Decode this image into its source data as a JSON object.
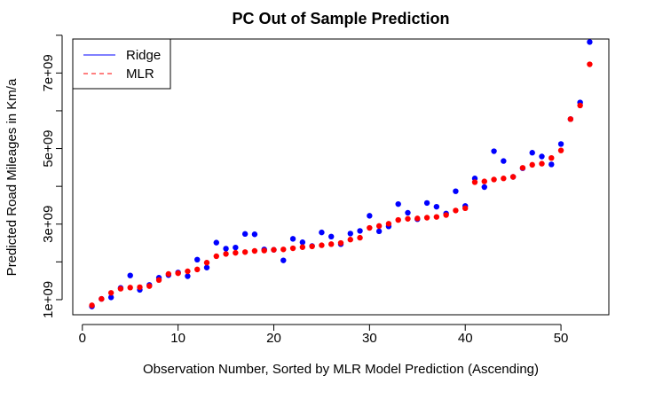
{
  "chart_data": {
    "type": "scatter",
    "title": "PC Out of Sample Prediction",
    "xlabel": "Observation Number, Sorted by MLR Model Prediction (Ascending)",
    "ylabel": "Predicted Road Mileages in Km/a",
    "xlim": [
      -1,
      55
    ],
    "ylim": [
      600000000,
      7900000000
    ],
    "x_ticks": [
      0,
      10,
      20,
      30,
      40,
      50
    ],
    "x_tick_labels": [
      "0",
      "10",
      "20",
      "30",
      "40",
      "50"
    ],
    "y_ticks": [
      1000000000,
      2000000000,
      3000000000,
      4000000000,
      5000000000,
      6000000000,
      7000000000,
      8000000000
    ],
    "y_tick_labels": [
      "1e+09",
      "",
      "3e+09",
      "",
      "5e+09",
      "",
      "7e+09",
      ""
    ],
    "legend": {
      "position": "top-left",
      "entries": [
        {
          "label": "Ridge",
          "color": "#0000ff",
          "line": "solid"
        },
        {
          "label": "MLR",
          "color": "#ff0000",
          "line": "dashed"
        }
      ]
    },
    "series": [
      {
        "name": "Ridge",
        "color": "#0000ff",
        "x": [
          1,
          2,
          3,
          4,
          5,
          6,
          7,
          8,
          9,
          10,
          11,
          12,
          13,
          14,
          15,
          16,
          17,
          18,
          19,
          20,
          21,
          22,
          23,
          24,
          25,
          26,
          27,
          28,
          29,
          30,
          31,
          32,
          33,
          34,
          35,
          36,
          37,
          38,
          39,
          40,
          41,
          42,
          43,
          44,
          45,
          46,
          47,
          48,
          49,
          50,
          51,
          52,
          53
        ],
        "y": [
          820000000,
          1020000000,
          1060000000,
          1310000000,
          1640000000,
          1260000000,
          1390000000,
          1580000000,
          1650000000,
          1720000000,
          1620000000,
          2060000000,
          1850000000,
          2510000000,
          2350000000,
          2380000000,
          2740000000,
          2730000000,
          2330000000,
          2320000000,
          2040000000,
          2610000000,
          2520000000,
          2420000000,
          2780000000,
          2670000000,
          2470000000,
          2750000000,
          2820000000,
          3220000000,
          2810000000,
          2940000000,
          3530000000,
          3300000000,
          3130000000,
          3560000000,
          3460000000,
          3280000000,
          3870000000,
          3480000000,
          4210000000,
          3980000000,
          4930000000,
          4670000000,
          4250000000,
          4480000000,
          4890000000,
          4790000000,
          4580000000,
          5120000000,
          5780000000,
          6220000000,
          7820000000
        ]
      },
      {
        "name": "MLR",
        "color": "#ff0000",
        "x": [
          1,
          2,
          3,
          4,
          5,
          6,
          7,
          8,
          9,
          10,
          11,
          12,
          13,
          14,
          15,
          16,
          17,
          18,
          19,
          20,
          21,
          22,
          23,
          24,
          25,
          26,
          27,
          28,
          29,
          30,
          31,
          32,
          33,
          34,
          35,
          36,
          37,
          38,
          39,
          40,
          41,
          42,
          43,
          44,
          45,
          46,
          47,
          48,
          49,
          50,
          51,
          52,
          53
        ],
        "y": [
          850000000,
          1020000000,
          1180000000,
          1290000000,
          1320000000,
          1330000000,
          1360000000,
          1520000000,
          1680000000,
          1700000000,
          1750000000,
          1800000000,
          1980000000,
          2150000000,
          2210000000,
          2240000000,
          2260000000,
          2290000000,
          2300000000,
          2320000000,
          2330000000,
          2360000000,
          2390000000,
          2410000000,
          2440000000,
          2470000000,
          2500000000,
          2590000000,
          2640000000,
          2900000000,
          2950000000,
          3010000000,
          3110000000,
          3140000000,
          3150000000,
          3170000000,
          3190000000,
          3240000000,
          3360000000,
          3420000000,
          4110000000,
          4130000000,
          4180000000,
          4210000000,
          4250000000,
          4490000000,
          4570000000,
          4600000000,
          4750000000,
          4950000000,
          5780000000,
          6140000000,
          7230000000
        ]
      }
    ]
  }
}
